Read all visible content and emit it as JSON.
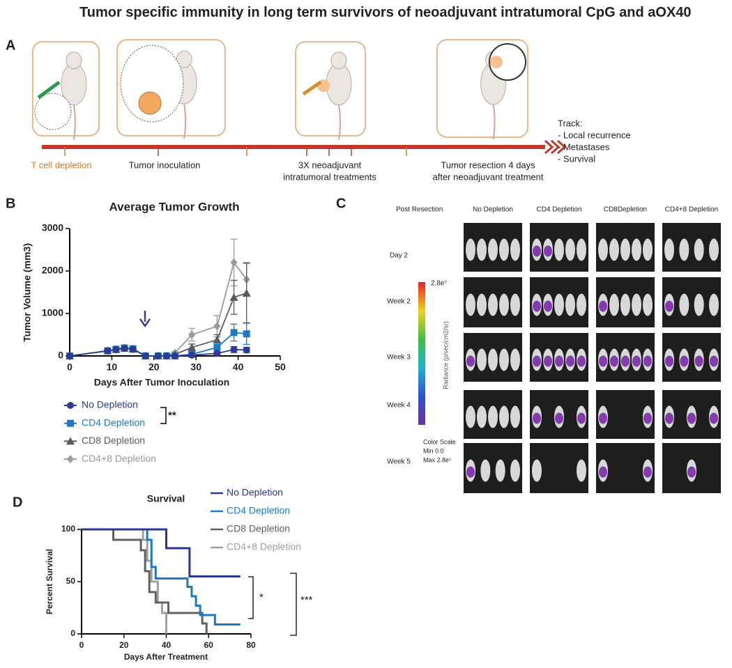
{
  "title": "Tumor specific immunity in long term survivors of neoadjuvant intratumoral CpG and aOX40",
  "panel_a": {
    "letter": "A",
    "steps": [
      {
        "lines": [
          "T cell depletion"
        ],
        "color": "#e07a20"
      },
      {
        "lines": [
          "Tumor inoculation"
        ],
        "color": "#222222"
      },
      {
        "lines": [
          "3X neoadjuvant",
          "intratumoral treatments"
        ],
        "color": "#222222"
      },
      {
        "lines": [
          "Tumor resection 4 days",
          "after neoadjuvant treatment"
        ],
        "color": "#222222"
      }
    ],
    "track": [
      "Track:",
      "- Local recurrence",
      " - Metastases",
      "- Survival"
    ]
  },
  "panel_c": {
    "letter": "C",
    "corner": "Post Resection",
    "columns": [
      "No Depletion",
      "CD4 Depletion",
      "CD8Depletion",
      "CD4+8 Depletion"
    ],
    "rows": [
      "Day 2",
      "Week 2",
      "Week 3",
      "Week 4",
      "Week 5"
    ],
    "scale_max": "2.8e⁷",
    "scale_label": "Radiance (p/sec/cm2/sr)",
    "scale_note": [
      "Color Scale",
      "Min 0.0",
      "Max 2.8e⁷"
    ]
  },
  "chart_data": [
    {
      "type": "line",
      "letter": "B",
      "title": "Average Tumor Growth",
      "x_label": "Days After Tumor Inoculation",
      "y_label": "Tumor Volume (mm3)",
      "x": [
        0,
        9,
        11,
        13,
        15,
        18,
        21,
        23,
        25,
        29,
        35,
        39,
        42
      ],
      "xlim": [
        0,
        50
      ],
      "xticks": [
        0,
        10,
        20,
        30,
        40,
        50
      ],
      "ylim": [
        0,
        3000
      ],
      "yticks": [
        0,
        1000,
        2000,
        3000
      ],
      "annotation": "**",
      "series": [
        {
          "name": "No Depletion",
          "color": "#2b3a93",
          "marker": "circle",
          "values": [
            0,
            120,
            150,
            180,
            160,
            0,
            0,
            0,
            0,
            20,
            60,
            150,
            140
          ],
          "errors": [
            0,
            20,
            30,
            40,
            30,
            0,
            0,
            0,
            0,
            10,
            30,
            70,
            60
          ]
        },
        {
          "name": "CD4 Depletion",
          "color": "#1f78c1",
          "marker": "square",
          "values": [
            0,
            120,
            160,
            190,
            170,
            0,
            0,
            0,
            0,
            40,
            200,
            550,
            520
          ],
          "errors": [
            0,
            20,
            30,
            40,
            30,
            0,
            0,
            0,
            0,
            20,
            100,
            200,
            250
          ]
        },
        {
          "name": "CD8 Depletion",
          "color": "#5a5a5a",
          "marker": "triangle",
          "values": [
            0,
            120,
            150,
            180,
            160,
            0,
            0,
            0,
            40,
            200,
            380,
            1380,
            1480
          ],
          "errors": [
            0,
            20,
            30,
            40,
            30,
            0,
            0,
            0,
            20,
            80,
            120,
            400,
            700
          ]
        },
        {
          "name": "CD4+8 Depletion",
          "color": "#9a9a9a",
          "marker": "diamond",
          "values": [
            0,
            120,
            150,
            180,
            160,
            0,
            0,
            0,
            70,
            500,
            700,
            2200,
            1800
          ],
          "errors": [
            0,
            20,
            30,
            40,
            30,
            0,
            0,
            0,
            30,
            150,
            250,
            550,
            400
          ]
        }
      ]
    },
    {
      "type": "line",
      "letter": "D",
      "title": "Survival",
      "x_label": "Days After Treatment",
      "y_label": "Percent Survival",
      "xlim": [
        0,
        80
      ],
      "xticks": [
        0,
        20,
        40,
        60,
        80
      ],
      "ylim": [
        0,
        100
      ],
      "yticks": [
        0,
        50,
        100
      ],
      "annotations": [
        "*",
        "***"
      ],
      "series": [
        {
          "name": "No Depletion",
          "color": "#28388f",
          "x": [
            0,
            40,
            40,
            51,
            51,
            75
          ],
          "values": [
            100,
            100,
            82,
            82,
            55,
            55
          ]
        },
        {
          "name": "CD4 Depletion",
          "color": "#1a7bc4",
          "x": [
            0,
            31,
            31,
            33,
            33,
            35,
            35,
            50,
            50,
            52,
            52,
            54,
            54,
            56,
            56,
            63,
            63,
            75
          ],
          "values": [
            100,
            100,
            90,
            90,
            64,
            64,
            53,
            53,
            45,
            45,
            36,
            36,
            27,
            27,
            18,
            18,
            9,
            9
          ]
        },
        {
          "name": "CD8 Depletion",
          "color": "#606060",
          "x": [
            0,
            15,
            15,
            28,
            28,
            30,
            30,
            32,
            32,
            35,
            35,
            41,
            41,
            57,
            57,
            59,
            59
          ],
          "values": [
            100,
            100,
            90,
            90,
            80,
            80,
            60,
            60,
            40,
            40,
            30,
            30,
            20,
            20,
            10,
            10,
            0
          ]
        },
        {
          "name": "CD4+8 Depletion",
          "color": "#a0a0a0",
          "x": [
            0,
            29,
            29,
            31,
            31,
            33,
            33,
            36,
            36,
            38,
            38,
            40,
            40
          ],
          "values": [
            100,
            100,
            90,
            90,
            70,
            70,
            50,
            50,
            30,
            30,
            20,
            20,
            0
          ]
        }
      ]
    }
  ]
}
